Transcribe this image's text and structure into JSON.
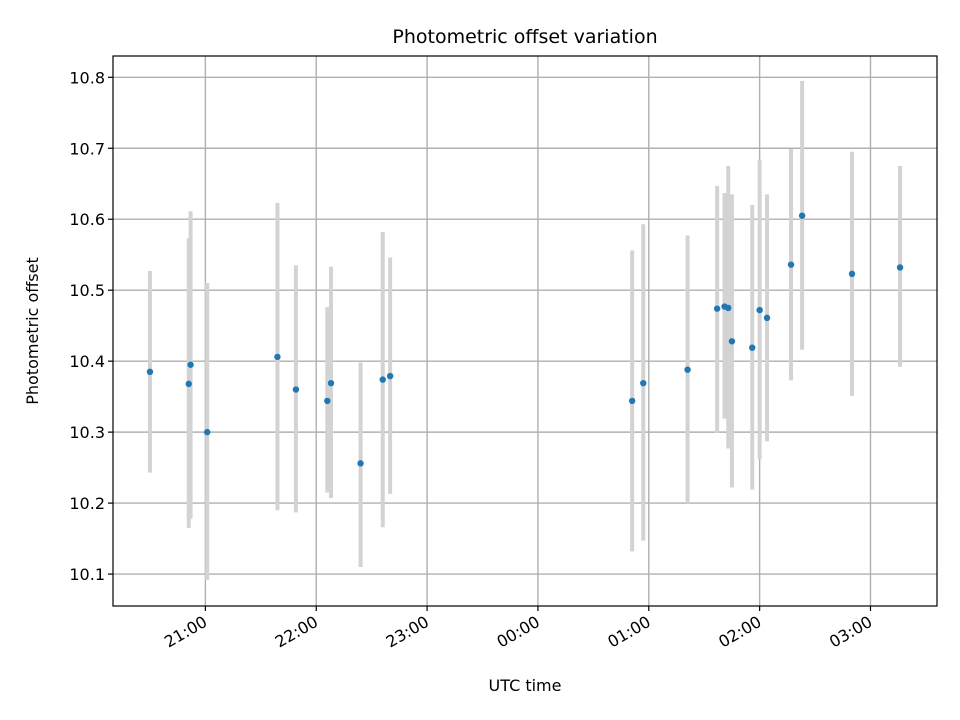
{
  "chart_data": {
    "type": "scatter",
    "title": "Photometric offset variation",
    "xlabel": "UTC time",
    "ylabel": "Photometric offset",
    "grid": true,
    "x_axis": {
      "kind": "time",
      "range": [
        "20:10",
        "03:36"
      ],
      "ticks": [
        "21:00",
        "22:00",
        "23:00",
        "00:00",
        "01:00",
        "02:00",
        "03:00"
      ]
    },
    "y_axis": {
      "range": [
        10.055,
        10.83
      ],
      "ticks": [
        "10.1",
        "10.2",
        "10.3",
        "10.4",
        "10.5",
        "10.6",
        "10.7",
        "10.8"
      ]
    },
    "colors": {
      "points": "#1f77b4",
      "error_bars": "#d3d3d3",
      "grid": "#b0b0b0"
    },
    "series": [
      {
        "points": [
          {
            "x": "20:30",
            "y": 10.385,
            "ylo": 10.243,
            "yhi": 10.527
          },
          {
            "x": "20:51",
            "y": 10.368,
            "ylo": 10.165,
            "yhi": 10.573
          },
          {
            "x": "20:52",
            "y": 10.395,
            "ylo": 10.178,
            "yhi": 10.611
          },
          {
            "x": "21:01",
            "y": 10.3,
            "ylo": 10.092,
            "yhi": 10.51
          },
          {
            "x": "21:39",
            "y": 10.406,
            "ylo": 10.19,
            "yhi": 10.623
          },
          {
            "x": "21:49",
            "y": 10.36,
            "ylo": 10.187,
            "yhi": 10.535
          },
          {
            "x": "22:06",
            "y": 10.344,
            "ylo": 10.215,
            "yhi": 10.476
          },
          {
            "x": "22:08",
            "y": 10.369,
            "ylo": 10.207,
            "yhi": 10.533
          },
          {
            "x": "22:24",
            "y": 10.256,
            "ylo": 10.11,
            "yhi": 10.398
          },
          {
            "x": "22:36",
            "y": 10.374,
            "ylo": 10.166,
            "yhi": 10.582
          },
          {
            "x": "22:40",
            "y": 10.379,
            "ylo": 10.213,
            "yhi": 10.546
          },
          {
            "x": "00:51",
            "y": 10.344,
            "ylo": 10.132,
            "yhi": 10.556
          },
          {
            "x": "00:57",
            "y": 10.369,
            "ylo": 10.147,
            "yhi": 10.593
          },
          {
            "x": "01:21",
            "y": 10.388,
            "ylo": 10.2,
            "yhi": 10.577
          },
          {
            "x": "01:37",
            "y": 10.474,
            "ylo": 10.299,
            "yhi": 10.647
          },
          {
            "x": "01:41",
            "y": 10.477,
            "ylo": 10.319,
            "yhi": 10.637
          },
          {
            "x": "01:43",
            "y": 10.475,
            "ylo": 10.277,
            "yhi": 10.675
          },
          {
            "x": "01:45",
            "y": 10.428,
            "ylo": 10.222,
            "yhi": 10.635
          },
          {
            "x": "01:56",
            "y": 10.419,
            "ylo": 10.219,
            "yhi": 10.62
          },
          {
            "x": "02:00",
            "y": 10.472,
            "ylo": 10.262,
            "yhi": 10.684
          },
          {
            "x": "02:04",
            "y": 10.461,
            "ylo": 10.287,
            "yhi": 10.635
          },
          {
            "x": "02:17",
            "y": 10.536,
            "ylo": 10.373,
            "yhi": 10.699
          },
          {
            "x": "02:23",
            "y": 10.605,
            "ylo": 10.416,
            "yhi": 10.795
          },
          {
            "x": "02:50",
            "y": 10.523,
            "ylo": 10.351,
            "yhi": 10.695
          },
          {
            "x": "03:16",
            "y": 10.532,
            "ylo": 10.392,
            "yhi": 10.675
          }
        ]
      }
    ]
  }
}
